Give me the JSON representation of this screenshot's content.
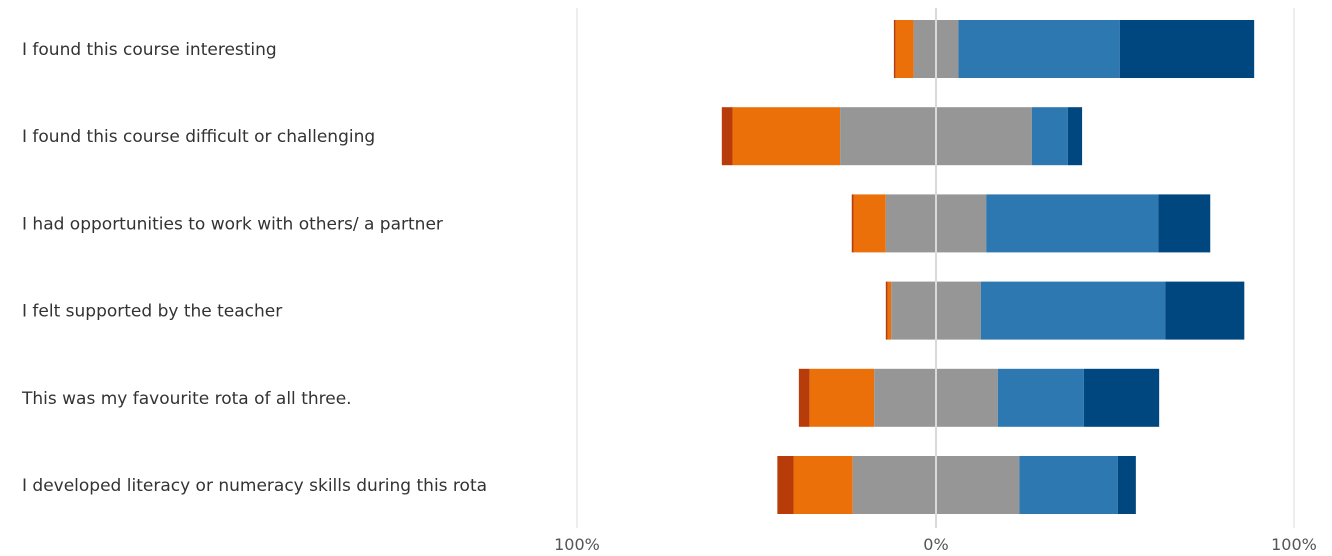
{
  "chart_data": {
    "type": "bar",
    "orientation": "horizontal",
    "layout": "diverging-stacked",
    "categories": [
      "I found this course interesting",
      "I found this course difficult or challenging",
      "I had opportunities to work with others/ a partner",
      "I felt supported by the teacher",
      "This was my favourite rota of all three.",
      "I developed literacy or numeracy skills during this rota"
    ],
    "series": [
      {
        "values": [
          0.5,
          3,
          0.5,
          0.5,
          3,
          4.5
        ]
      },
      {
        "values": [
          5,
          30,
          9,
          1,
          18,
          16.5
        ]
      },
      {
        "values": [
          12.5,
          53.5,
          28,
          25,
          34.5,
          46.5
        ]
      },
      {
        "values": [
          45,
          10,
          48,
          51.5,
          24,
          27.5
        ]
      },
      {
        "values": [
          37.5,
          4,
          14.5,
          22,
          21,
          5
        ]
      }
    ],
    "neutral_series_index": 2,
    "series_colors": [
      "#b83c0a",
      "#ec7009",
      "#969696",
      "#2e78b1",
      "#00467f"
    ],
    "xlim": [
      -100,
      100
    ],
    "xticks": [
      "100%",
      "0%",
      "100%"
    ],
    "grid": false,
    "legend": "none"
  }
}
